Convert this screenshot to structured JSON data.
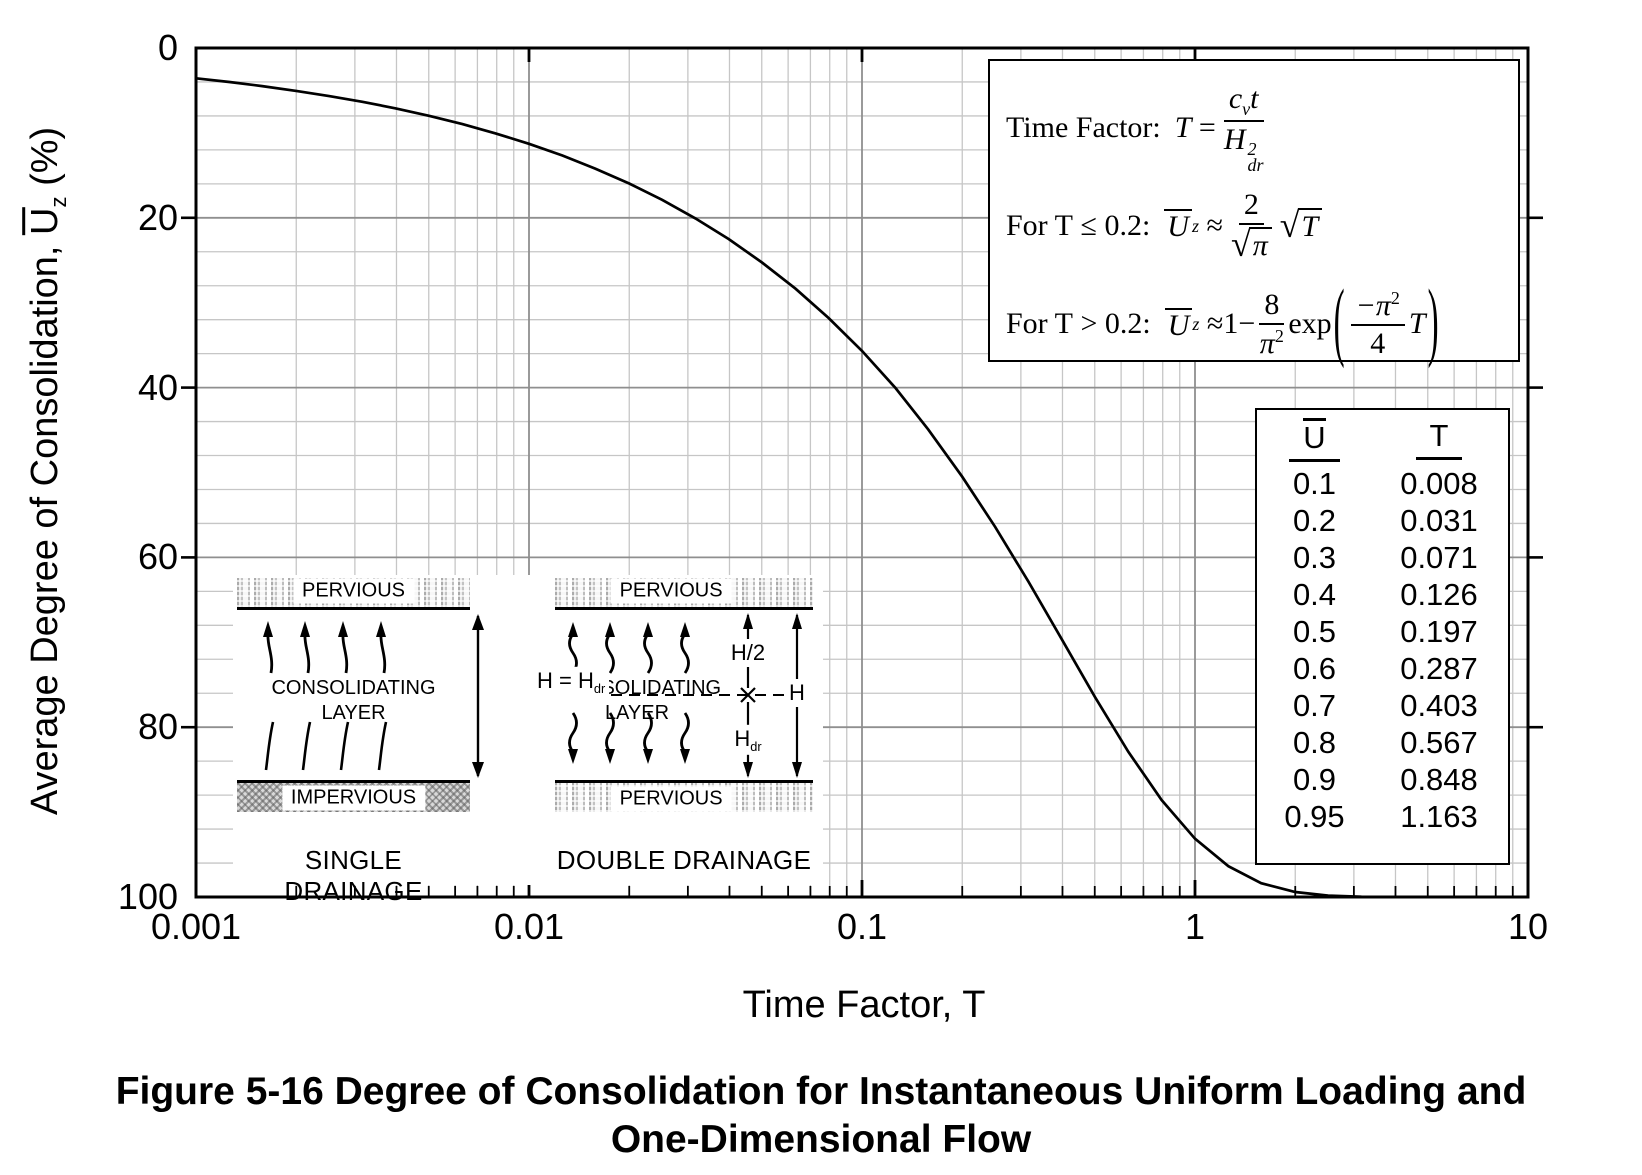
{
  "figure_caption": {
    "line1": "Figure 5-16  Degree of Consolidation for Instantaneous Uniform Loading and",
    "line2": "One-Dimensional Flow"
  },
  "axes": {
    "ylabel_prefix": "Average Degree of Consolidation, ",
    "ylabel_var": "U",
    "ylabel_sub": "z",
    "ylabel_suffix": " (%)",
    "xlabel": "Time Factor, T"
  },
  "chart_data": {
    "type": "line",
    "title": "",
    "xlabel": "Time Factor, T",
    "ylabel": "Average Degree of Consolidation, Uz (%)",
    "x_scale": "log",
    "xlim": [
      0.001,
      10
    ],
    "ylim": [
      0,
      100
    ],
    "y_axis_inverted": true,
    "grid": {
      "minor_y_step": 4,
      "major_y_step": 20,
      "minor_x": "log subdivisions 2-9 each decade",
      "minor_color": "#c6c6c6",
      "major_color": "#8f8f8f"
    },
    "x_ticks": [
      "0.001",
      "0.01",
      "0.1",
      "1",
      "10"
    ],
    "y_ticks": [
      "0",
      "20",
      "40",
      "60",
      "80",
      "100"
    ],
    "series": [
      {
        "name": "Average degree of consolidation vs time factor",
        "color": "#000000",
        "points": [
          [
            0.001,
            3.57
          ],
          [
            0.00126,
            4.0
          ],
          [
            0.00158,
            4.49
          ],
          [
            0.002,
            5.05
          ],
          [
            0.00251,
            5.66
          ],
          [
            0.00316,
            6.34
          ],
          [
            0.00398,
            7.12
          ],
          [
            0.00501,
            7.99
          ],
          [
            0.00631,
            8.96
          ],
          [
            0.00794,
            10.06
          ],
          [
            0.01,
            11.28
          ],
          [
            0.0126,
            12.66
          ],
          [
            0.0158,
            14.21
          ],
          [
            0.02,
            15.96
          ],
          [
            0.0251,
            17.88
          ],
          [
            0.0316,
            20.07
          ],
          [
            0.0398,
            22.51
          ],
          [
            0.0501,
            25.26
          ],
          [
            0.0631,
            28.34
          ],
          [
            0.0794,
            31.8
          ],
          [
            0.1,
            35.68
          ],
          [
            0.126,
            40.04
          ],
          [
            0.158,
            44.92
          ],
          [
            0.2,
            50.5
          ],
          [
            0.251,
            56.4
          ],
          [
            0.316,
            62.85
          ],
          [
            0.398,
            69.65
          ],
          [
            0.501,
            76.46
          ],
          [
            0.631,
            82.91
          ],
          [
            0.794,
            88.58
          ],
          [
            1.0,
            93.13
          ],
          [
            1.26,
            96.37
          ],
          [
            1.58,
            98.38
          ],
          [
            2.0,
            99.41
          ],
          [
            2.51,
            99.84
          ],
          [
            3.16,
            99.97
          ]
        ]
      }
    ]
  },
  "formula_box": {
    "line1_label": "Time Factor:",
    "line1_lhs": "T",
    "line1_eq": "=",
    "line1_num_c": "c",
    "line1_num_csub": "v",
    "line1_num_t": "t",
    "line1_den_base": "H",
    "line1_den_sup": "2",
    "line1_den_sub": "dr",
    "line2_cond": "For T",
    "line2_rel": "≤",
    "line2_val": "0.2:",
    "line2_var": "U",
    "line2_varsub": "z",
    "line2_approx": "≈",
    "line2_num": "2",
    "line2_den_rad": "√",
    "line2_den_pi": "π",
    "line2_rad": "√",
    "line2_radicand": "T",
    "line3_cond": "For T",
    "line3_rel": ">",
    "line3_val": "0.2:",
    "line3_var": "U",
    "line3_varsub": "z",
    "line3_approx": "≈",
    "line3_one": "1",
    "line3_minus": "−",
    "line3_num": "8",
    "line3_den_pi": "π",
    "line3_den_sup": "2",
    "line3_exp": "exp",
    "line3_inner_num": "−π",
    "line3_inner_sup": "2",
    "line3_inner_den": "4",
    "line3_T": "T",
    "paren_open": "(",
    "paren_close": ")"
  },
  "table": {
    "header_u": "U",
    "header_t": "T",
    "rows": [
      [
        "0.1",
        "0.008"
      ],
      [
        "0.2",
        "0.031"
      ],
      [
        "0.3",
        "0.071"
      ],
      [
        "0.4",
        "0.126"
      ],
      [
        "0.5",
        "0.197"
      ],
      [
        "0.6",
        "0.287"
      ],
      [
        "0.7",
        "0.403"
      ],
      [
        "0.8",
        "0.567"
      ],
      [
        "0.9",
        "0.848"
      ],
      [
        "0.95",
        "1.163"
      ]
    ]
  },
  "diagrams": {
    "single": {
      "top_band": "PERVIOUS",
      "layer1": "CONSOLIDATING",
      "layer2": "LAYER",
      "bottom_band": "IMPERVIOUS",
      "dim": "H = H",
      "dim_sub": "dr",
      "title": "SINGLE DRAINAGE"
    },
    "double": {
      "top_band": "PERVIOUS",
      "layer1": "CONSOLIDATING",
      "layer2": "LAYER",
      "bottom_band": "PERVIOUS",
      "dim_half": "H/2",
      "dim_hdr": "H",
      "dim_hdr_sub": "dr",
      "dim_h": "H",
      "title": "DOUBLE DRAINAGE"
    }
  }
}
